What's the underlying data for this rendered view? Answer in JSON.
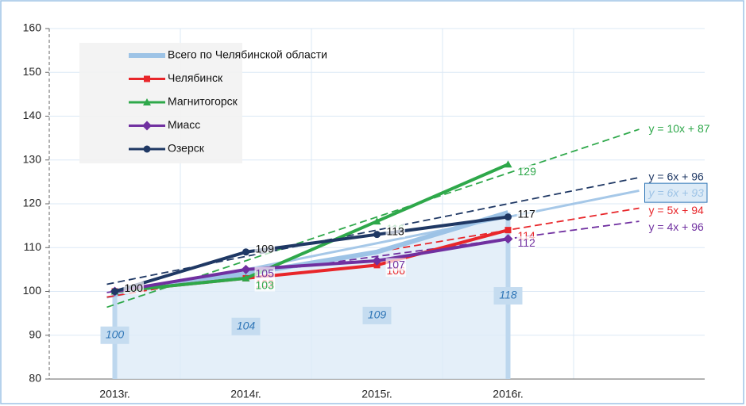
{
  "chart_data": {
    "type": "line",
    "categories": [
      "2013г.",
      "2014г.",
      "2015г.",
      "2016г.",
      null
    ],
    "ylim": [
      80,
      160
    ],
    "yticks": [
      80,
      90,
      100,
      110,
      120,
      130,
      140,
      150,
      160
    ],
    "grid": true,
    "legend": "top-left",
    "series": [
      {
        "name": "Всего по Челябинской области",
        "color": "#9dc3e6",
        "values": [
          100,
          104,
          109,
          118,
          null
        ],
        "trend": {
          "label": "y = 6x + 93",
          "slope": 6,
          "intercept": 93
        }
      },
      {
        "name": "Челябинск",
        "color": "#e8262a",
        "values": [
          100,
          103,
          106,
          114,
          null
        ],
        "trend": {
          "label": "y = 5x + 94",
          "slope": 5,
          "intercept": 94
        }
      },
      {
        "name": "Магнитогорск",
        "color": "#2ea84a",
        "values": [
          100,
          103,
          116,
          129,
          null
        ],
        "trend": {
          "label": "y = 10x + 87",
          "slope": 10,
          "intercept": 87
        }
      },
      {
        "name": "Миасс",
        "color": "#7030a0",
        "values": [
          100,
          105,
          107,
          112,
          null
        ],
        "trend": {
          "label": "y = 4x + 96",
          "slope": 4,
          "intercept": 96
        }
      },
      {
        "name": "Озерск",
        "color": "#1f3864",
        "values": [
          100,
          109,
          113,
          117,
          null
        ],
        "trend": {
          "label": "y = 6x + 96",
          "slope": 6,
          "intercept": 96
        }
      }
    ]
  }
}
